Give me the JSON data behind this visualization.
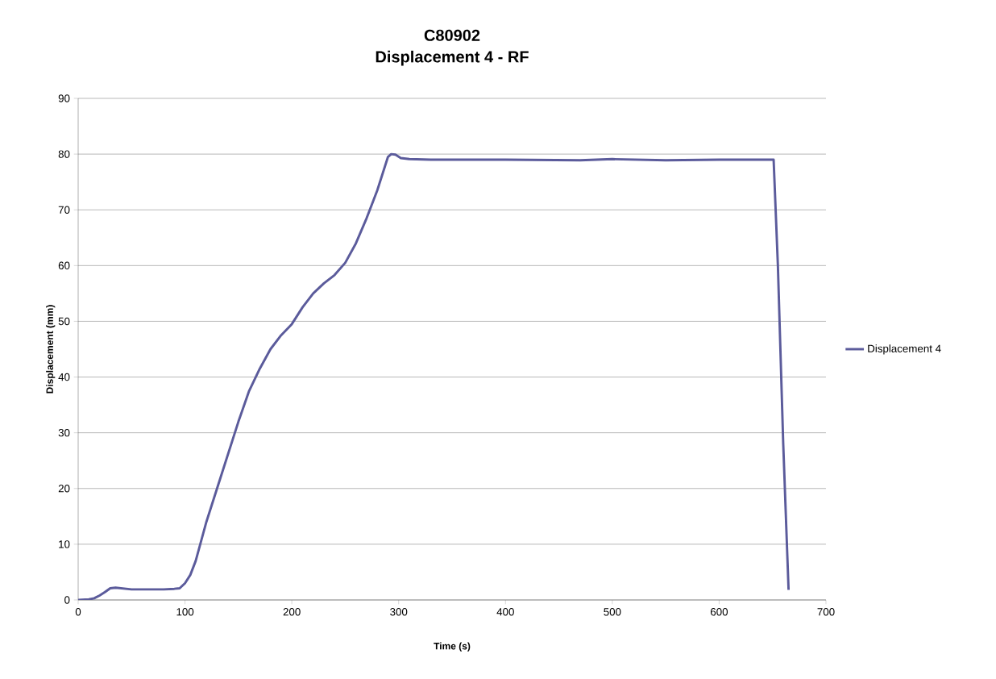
{
  "chart_data": {
    "type": "line",
    "title": "C80902",
    "subtitle": "Displacement 4 - RF",
    "xlabel": "Time (s)",
    "ylabel": "Displacement (mm)",
    "xlim": [
      0,
      700
    ],
    "xticks": [
      0,
      100,
      200,
      300,
      400,
      500,
      600,
      700
    ],
    "ylim": [
      0,
      90
    ],
    "yticks": [
      0,
      10,
      20,
      30,
      40,
      50,
      60,
      70,
      80,
      90
    ],
    "grid": "y",
    "legend": "right",
    "marker": "none",
    "line_style": "solid",
    "series": [
      {
        "name": "Displacement 4",
        "color": "#5b5b9b",
        "x": [
          0,
          10,
          15,
          20,
          25,
          30,
          35,
          40,
          50,
          60,
          70,
          80,
          90,
          95,
          100,
          105,
          110,
          115,
          120,
          130,
          140,
          150,
          160,
          170,
          180,
          190,
          200,
          210,
          220,
          230,
          240,
          250,
          260,
          270,
          280,
          290,
          293,
          297,
          302,
          310,
          330,
          400,
          470,
          500,
          550,
          600,
          640,
          651,
          655,
          660,
          665
        ],
        "values": [
          0,
          0.1,
          0.3,
          0.8,
          1.4,
          2.1,
          2.2,
          2.1,
          1.9,
          1.9,
          1.9,
          1.9,
          2.0,
          2.1,
          3,
          4.5,
          7,
          10.5,
          14,
          20,
          26,
          32,
          37.5,
          41.5,
          45,
          47.5,
          49.5,
          52.5,
          55,
          56.8,
          58.3,
          60.5,
          64,
          68.5,
          73.5,
          79.5,
          80,
          79.9,
          79.3,
          79.1,
          79,
          79,
          78.9,
          79.1,
          78.9,
          79,
          79,
          79,
          60,
          28,
          1.8
        ]
      }
    ]
  }
}
